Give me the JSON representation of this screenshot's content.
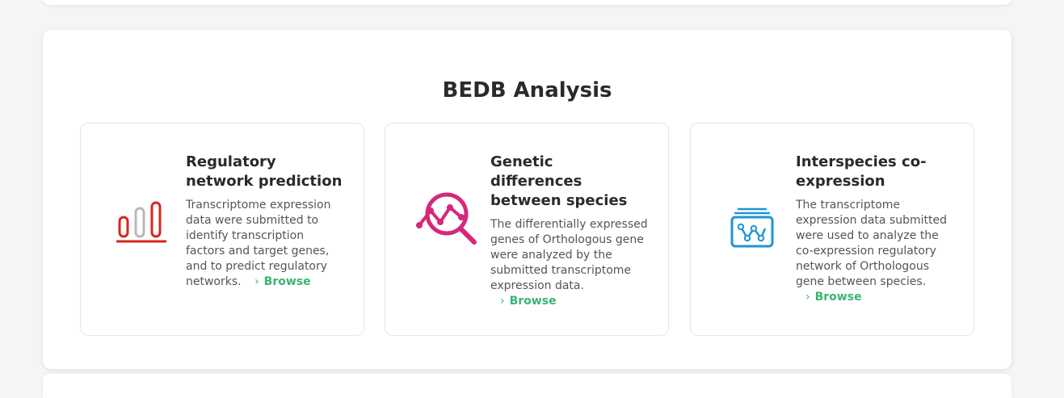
{
  "section": {
    "title": "BEDB Analysis"
  },
  "cards": [
    {
      "title": "Regulatory network prediction",
      "description": "Transcriptome expression data were submitted to identify transcription factors and target genes, and to predict regulatory networks.",
      "browse_label": "Browse",
      "icon": "bar-chart-icon",
      "icon_colors": [
        "#d4281c",
        "#b8b8b8",
        "#d4281c"
      ]
    },
    {
      "title": "Genetic differences between species",
      "description": "The differentially expressed genes of Orthologous gene were analyzed by the submitted transcriptome expression data.",
      "browse_label": "Browse",
      "icon": "search-analysis-icon",
      "icon_colors": [
        "#d6287a"
      ]
    },
    {
      "title": "Interspecies co-expression",
      "description": "The transcriptome expression data submitted were used to analyze the co-expression regulatory network of Orthologous gene between species.",
      "browse_label": "Browse",
      "icon": "network-monitor-icon",
      "icon_colors": [
        "#1e96d2"
      ]
    }
  ]
}
